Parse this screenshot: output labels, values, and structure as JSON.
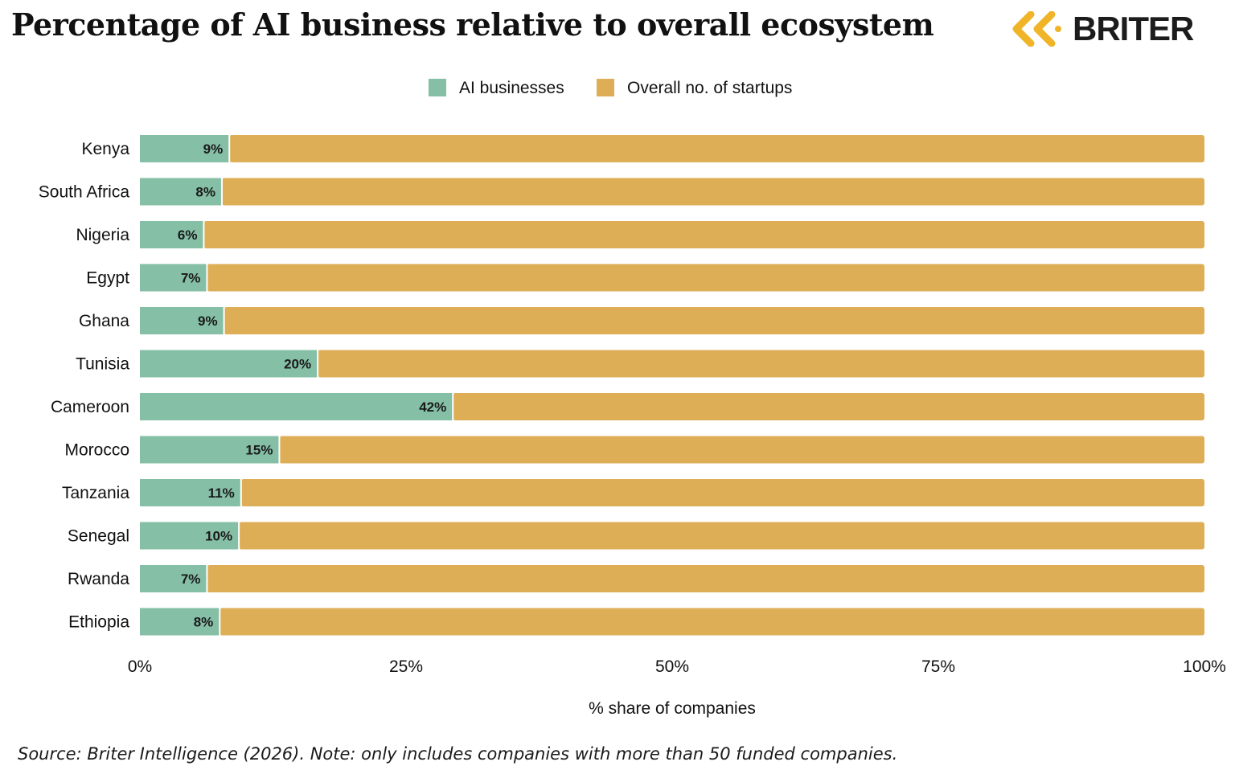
{
  "title": "Percentage of AI business relative to overall ecosystem",
  "brand": {
    "name": "BRITER",
    "mark_color": "#f0b429",
    "text_color": "#1c1c1c"
  },
  "footnote": "Source: Briter Intelligence (2026). Note: only includes companies with more than 50 funded companies.",
  "chart_data": {
    "type": "bar",
    "orientation": "horizontal",
    "stacked": true,
    "normalized": true,
    "categories": [
      "Kenya",
      "South Africa",
      "Nigeria",
      "Egypt",
      "Ghana",
      "Tunisia",
      "Cameroon",
      "Morocco",
      "Tanzania",
      "Senegal",
      "Rwanda",
      "Ethiopia"
    ],
    "series": [
      {
        "name": "AI businesses",
        "color": "#84bfa6",
        "values": [
          8.4,
          7.7,
          6.0,
          6.3,
          7.9,
          16.7,
          29.4,
          13.1,
          9.5,
          9.3,
          6.3,
          7.5
        ],
        "labels": [
          "9%",
          "8%",
          "6%",
          "7%",
          "9%",
          "20%",
          "42%",
          "15%",
          "11%",
          "10%",
          "7%",
          "8%"
        ]
      },
      {
        "name": "Overall no. of startups",
        "color": "#deae57",
        "values": [
          91.6,
          92.3,
          94.0,
          93.7,
          92.1,
          83.3,
          70.6,
          86.9,
          90.5,
          90.7,
          93.7,
          92.5
        ]
      }
    ],
    "xlim": [
      0,
      100
    ],
    "x_ticks": [
      "0%",
      "25%",
      "50%",
      "75%",
      "100%"
    ],
    "xlabel": "% share of companies",
    "ylabel": "",
    "legend_position": "top-center",
    "grid": false
  }
}
